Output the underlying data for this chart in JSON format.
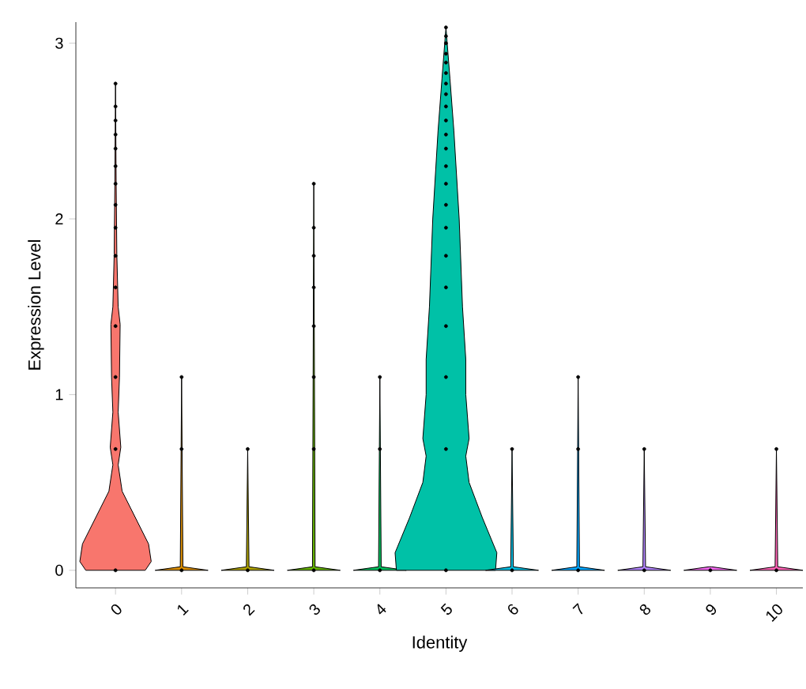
{
  "chart_data": {
    "type": "scatter",
    "xlabel": "Identity",
    "ylabel": "Expression Level",
    "xlim": [
      -0.6,
      10.4
    ],
    "xticks": [
      0,
      1,
      2,
      3,
      4,
      5,
      6,
      7,
      8,
      9,
      10
    ],
    "ylim": [
      -0.1,
      3.12
    ],
    "yticks": [
      0,
      1,
      2,
      3
    ],
    "series": [
      {
        "type": "area",
        "color": "#f8766d",
        "x": [
          0.45,
          0.54,
          0.5,
          0.3,
          0.1,
          0.04,
          0.08,
          0.04,
          0.06,
          0.07,
          0.04,
          0.02,
          0.01,
          0,
          -0.01,
          -0.02,
          -0.04,
          -0.07,
          -0.06,
          -0.04,
          -0.08,
          -0.04,
          -0.1,
          -0.3,
          -0.5,
          -0.54,
          -0.45
        ],
        "values": [
          0,
          0.05,
          0.15,
          0.3,
          0.45,
          0.6,
          0.7,
          0.9,
          1.1,
          1.4,
          1.5,
          1.8,
          2.2,
          2.77,
          2.2,
          1.8,
          1.5,
          1.4,
          1.1,
          0.9,
          0.7,
          0.6,
          0.45,
          0.3,
          0.15,
          0.05,
          0
        ]
      },
      {
        "type": "area",
        "color": "#db8e00",
        "x": [
          1.4,
          1.02,
          1,
          0.98,
          0.6
        ],
        "values": [
          0,
          0.02,
          1.1,
          0.02,
          0
        ]
      },
      {
        "type": "area",
        "color": "#aea200",
        "x": [
          2.4,
          2.02,
          2,
          1.98,
          1.6
        ],
        "values": [
          0,
          0.02,
          0.69,
          0.02,
          0
        ]
      },
      {
        "type": "area",
        "color": "#64b200",
        "x": [
          3.4,
          3.02,
          3,
          2.98,
          2.6
        ],
        "values": [
          0,
          0.02,
          2.2,
          0.02,
          0
        ]
      },
      {
        "type": "area",
        "color": "#00bd5c",
        "x": [
          4.4,
          4.02,
          4,
          3.98,
          3.6
        ],
        "values": [
          0,
          0.02,
          1.1,
          0.02,
          0
        ]
      },
      {
        "type": "area",
        "color": "#00c1a7",
        "x": [
          5.75,
          5.77,
          5.55,
          5.35,
          5.3,
          5.35,
          5.3,
          5.3,
          5.25,
          5.2,
          5.12,
          5.06,
          5,
          4.94,
          4.88,
          4.8,
          4.75,
          4.7,
          4.7,
          4.65,
          4.7,
          4.65,
          4.45,
          4.23,
          4.25
        ],
        "values": [
          0,
          0.1,
          0.3,
          0.5,
          0.65,
          0.75,
          1,
          1.2,
          1.5,
          2,
          2.5,
          2.8,
          3.09,
          2.8,
          2.5,
          2,
          1.5,
          1.2,
          1,
          0.75,
          0.65,
          0.5,
          0.3,
          0.1,
          0
        ]
      },
      {
        "type": "area",
        "color": "#00bade",
        "x": [
          6.4,
          6.02,
          6,
          5.98,
          5.6
        ],
        "values": [
          0,
          0.02,
          0.69,
          0.02,
          0
        ]
      },
      {
        "type": "area",
        "color": "#00a6ff",
        "x": [
          7.4,
          7.02,
          7,
          6.98,
          6.6
        ],
        "values": [
          0,
          0.02,
          1.1,
          0.02,
          0
        ]
      },
      {
        "type": "area",
        "color": "#b385ff",
        "x": [
          8.4,
          8.02,
          8,
          7.98,
          7.6
        ],
        "values": [
          0,
          0.02,
          0.69,
          0.02,
          0
        ]
      },
      {
        "type": "area",
        "color": "#ef67eb",
        "x": [
          9.4,
          9.02,
          8.98,
          8.6
        ],
        "values": [
          0,
          0.02,
          0.02,
          0
        ]
      },
      {
        "type": "area",
        "color": "#ff63b6",
        "x": [
          10.4,
          10.02,
          10,
          9.98,
          9.6
        ],
        "values": [
          0,
          0.02,
          0.69,
          0.02,
          0
        ]
      },
      {
        "color": "#000000",
        "marker": "circle",
        "x": [
          0,
          0,
          0,
          0,
          0,
          0,
          0,
          0,
          0,
          0,
          0,
          0,
          0,
          0,
          0
        ],
        "values": [
          0,
          0.69,
          1.1,
          1.39,
          1.61,
          1.79,
          1.95,
          2.08,
          2.2,
          2.3,
          2.4,
          2.48,
          2.56,
          2.64,
          2.77
        ]
      },
      {
        "color": "#000000",
        "marker": "circle",
        "x": [
          1,
          1,
          1
        ],
        "values": [
          0,
          0.69,
          1.1
        ]
      },
      {
        "color": "#000000",
        "marker": "circle",
        "x": [
          2,
          2
        ],
        "values": [
          0,
          0.69
        ]
      },
      {
        "color": "#000000",
        "marker": "circle",
        "x": [
          3,
          3,
          3,
          3,
          3,
          3,
          3,
          3
        ],
        "values": [
          0,
          0.69,
          1.1,
          1.39,
          1.61,
          1.79,
          1.95,
          2.2
        ]
      },
      {
        "color": "#000000",
        "marker": "circle",
        "x": [
          4,
          4,
          4
        ],
        "values": [
          0,
          0.69,
          1.1
        ]
      },
      {
        "color": "#000000",
        "marker": "circle",
        "x": [
          5,
          5,
          5,
          5,
          5,
          5,
          5,
          5,
          5,
          5,
          5,
          5,
          5,
          5,
          5,
          5,
          5,
          5,
          5,
          5,
          5,
          5
        ],
        "values": [
          0,
          0.69,
          1.1,
          1.39,
          1.61,
          1.79,
          1.95,
          2.08,
          2.2,
          2.3,
          2.4,
          2.48,
          2.56,
          2.64,
          2.71,
          2.77,
          2.83,
          2.89,
          2.94,
          3.0,
          3.04,
          3.09
        ]
      },
      {
        "color": "#000000",
        "marker": "circle",
        "x": [
          6,
          6
        ],
        "values": [
          0,
          0.69
        ]
      },
      {
        "color": "#000000",
        "marker": "circle",
        "x": [
          7,
          7,
          7
        ],
        "values": [
          0,
          0.69,
          1.1
        ]
      },
      {
        "color": "#000000",
        "marker": "circle",
        "x": [
          8,
          8
        ],
        "values": [
          0,
          0.69
        ]
      },
      {
        "color": "#000000",
        "marker": "circle",
        "x": [
          9
        ],
        "values": [
          0
        ]
      },
      {
        "color": "#000000",
        "marker": "circle",
        "x": [
          10,
          10
        ],
        "values": [
          0,
          0.69
        ]
      }
    ]
  }
}
